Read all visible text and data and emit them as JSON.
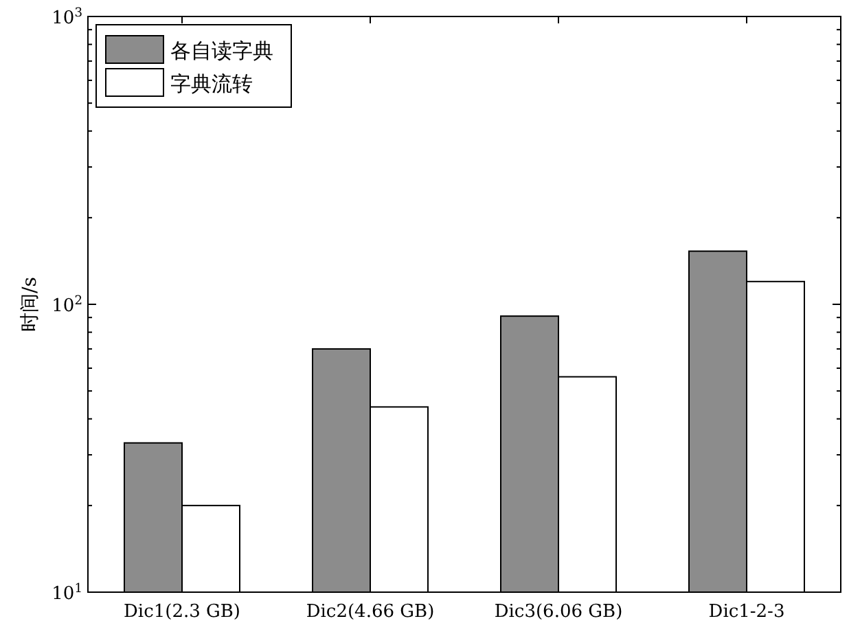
{
  "chart_data": {
    "type": "bar",
    "ylabel": "时间/s",
    "categories": [
      "Dic1(2.3 GB)",
      "Dic2(4.66 GB)",
      "Dic3(6.06 GB)",
      "Dic1-2-3"
    ],
    "series": [
      {
        "name": "各自读字典",
        "color": "#8c8c8c",
        "values": [
          33,
          70,
          91,
          153
        ]
      },
      {
        "name": "字典流转",
        "color": "#ffffff",
        "values": [
          20,
          44,
          56,
          120
        ]
      }
    ],
    "log": "y",
    "ylim": [
      10,
      1000
    ],
    "yticks": [
      {
        "value": 10,
        "label": "10$^{1}$"
      },
      {
        "value": 100,
        "label": "10$^{2}$"
      },
      {
        "value": 1000,
        "label": "10$^{3}$"
      }
    ],
    "legend": "top left",
    "grid": false
  }
}
